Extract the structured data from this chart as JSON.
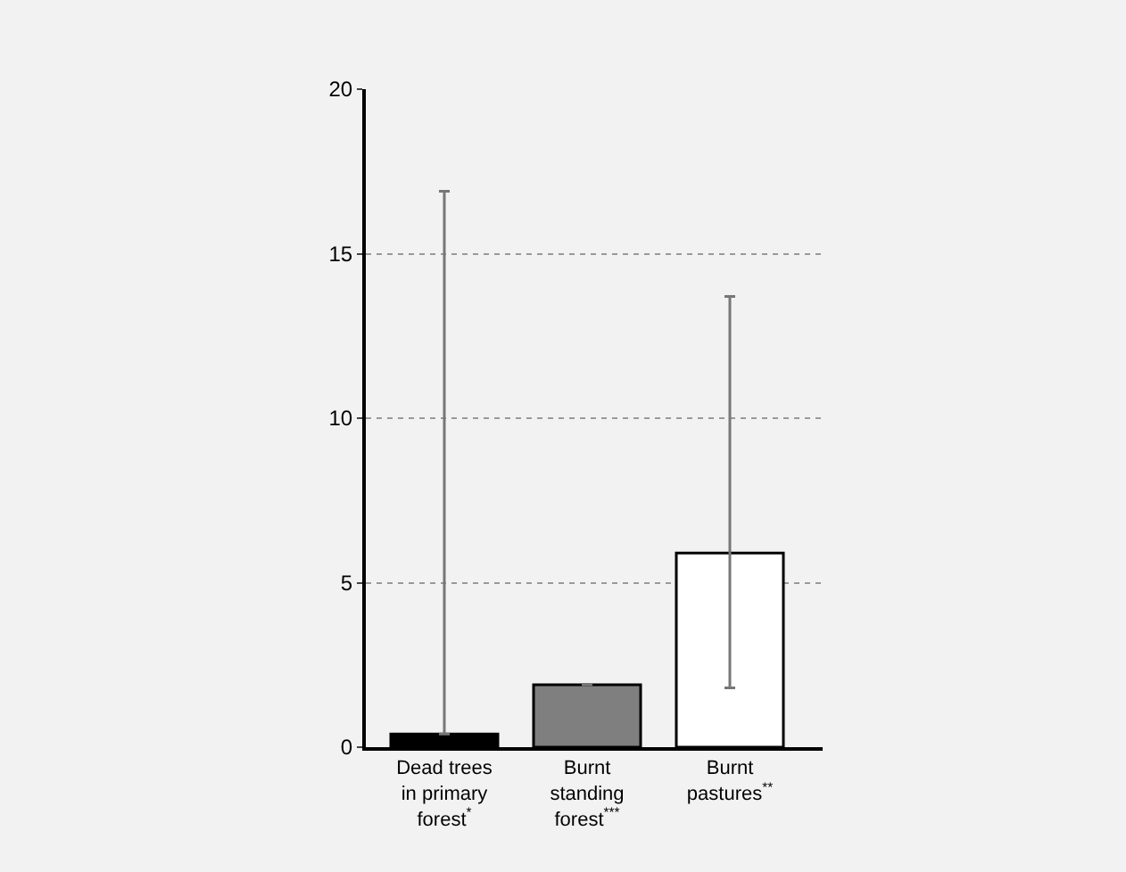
{
  "chart_data": {
    "type": "bar",
    "categories": [
      "Dead trees\nin primary\nforest$^{*}$",
      "Burnt\nstanding\nforest$^{***}$",
      "Burnt\npastures$^{**}$"
    ],
    "values": [
      0.4,
      1.9,
      5.9
    ],
    "colors": [
      "#000000",
      "#7f7f7f",
      "#ffffff"
    ],
    "errors": [
      [
        0.4,
        16.9
      ],
      null,
      [
        1.8,
        13.7
      ]
    ],
    "ylim": [
      0,
      20
    ],
    "yticks": [
      0,
      5,
      10,
      15,
      20
    ],
    "grid": "y"
  }
}
